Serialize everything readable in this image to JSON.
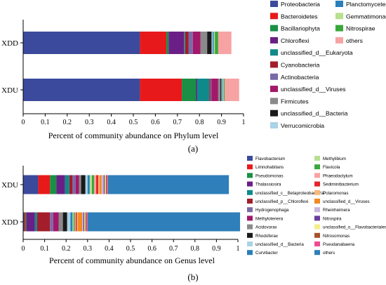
{
  "chart_data": [
    {
      "type": "bar",
      "orientation": "horizontal",
      "stacked": true,
      "panel_label": "(a)",
      "title": "",
      "xlabel": "Percent of community abundance on Phylum level",
      "ylabel": "",
      "xlim": [
        0,
        1
      ],
      "xticks": [
        "0",
        "0.1",
        "0.2",
        "0.3",
        "0.4",
        "0.5",
        "0.6",
        "0.7",
        "0.8",
        "0.9",
        "1"
      ],
      "categories": [
        "XDD",
        "XDU"
      ],
      "legend_columns": [
        [
          "Proteobacteria",
          "Bacteroidetes",
          "Bacillariophyta",
          "Chloroflexi",
          "unclassified_d__Eukaryota",
          "Cyanobacteria",
          "Actinobacteria",
          "unclassified_d__Viruses",
          "Firmicutes",
          "unclassified_d__Bacteria",
          "Verrucomicrobia"
        ],
        [
          "Planctomycetes",
          "Gemmatimonadetes",
          "Nitrospirae",
          "others"
        ]
      ],
      "series": [
        {
          "name": "Proteobacteria",
          "color": "#3b4a9c",
          "values": [
            0.53,
            0.53
          ]
        },
        {
          "name": "Bacteroidetes",
          "color": "#e8191a",
          "values": [
            0.12,
            0.19
          ]
        },
        {
          "name": "Bacillariophyta",
          "color": "#1a8f45",
          "values": [
            0.01,
            0.065
          ]
        },
        {
          "name": "Chloroflexi",
          "color": "#6a1f86",
          "values": [
            0.07,
            0.005
          ]
        },
        {
          "name": "unclassified_d__Eukaryota",
          "color": "#0f8a8a",
          "values": [
            0.005,
            0.055
          ]
        },
        {
          "name": "Cyanobacteria",
          "color": "#a31e2a",
          "values": [
            0.015,
            0.005
          ]
        },
        {
          "name": "Actinobacteria",
          "color": "#7b6aa8",
          "values": [
            0.02,
            0.005
          ]
        },
        {
          "name": "unclassified_d__Viruses",
          "color": "#a3186a",
          "values": [
            0.035,
            0.03
          ]
        },
        {
          "name": "Firmicutes",
          "color": "#8a8a8a",
          "values": [
            0.03,
            0.01
          ]
        },
        {
          "name": "unclassified_d__Bacteria",
          "color": "#1a1a1a",
          "values": [
            0.02,
            0.005
          ]
        },
        {
          "name": "Verrucomicrobia",
          "color": "#a9d3e6",
          "values": [
            0.005,
            0.005
          ]
        },
        {
          "name": "Planctomycetes",
          "color": "#2a7fba",
          "values": [
            0.005,
            0.003
          ]
        },
        {
          "name": "Gemmatimonadetes",
          "color": "#b7e08e",
          "values": [
            0.005,
            0.003
          ]
        },
        {
          "name": "Nitrospirae",
          "color": "#3aa73a",
          "values": [
            0.015,
            0.003
          ]
        },
        {
          "name": "others",
          "color": "#f7a3a3",
          "values": [
            0.06,
            0.066
          ]
        }
      ]
    },
    {
      "type": "bar",
      "orientation": "horizontal",
      "stacked": true,
      "panel_label": "(b)",
      "title": "",
      "xlabel": "Percent of community abundance on Genus level",
      "ylabel": "",
      "xlim": [
        0,
        1
      ],
      "xticks": [
        "0",
        "0.1",
        "0.2",
        "0.3",
        "0.4",
        "0.5",
        "0.6",
        "0.7",
        "0.8",
        "0.9",
        "1"
      ],
      "categories": [
        "XDU",
        "XDD"
      ],
      "legend_columns": [
        [
          "Flavobacterium",
          "Limnohabitans",
          "Pseudomonas",
          "Thalassiosira",
          "unclassified_c__Betaproteobacteria",
          "unclassified_p__Chloroflexi",
          "Hydrogenophaga",
          "Methylotenera",
          "Acidovorax",
          "Rhodoferax",
          "unclassified_d__Bacteria",
          "Curvibacter"
        ],
        [
          "Methylibium",
          "Flavicola",
          "Phaeodactylum",
          "Sediminibacterium",
          "Polaromonas",
          "unclassified_d__Viruses",
          "Rheinheimera",
          "Nitrospira",
          "unclassified_o__Flavobacteriales",
          "Nitrosomonas",
          "Pseudanabaena",
          "others"
        ]
      ],
      "series": [
        {
          "name": "Flavobacterium",
          "color": "#3b4a9c",
          "values": [
            0.07,
            0.005
          ]
        },
        {
          "name": "Limnohabitans",
          "color": "#e8191a",
          "values": [
            0.055,
            0.005
          ]
        },
        {
          "name": "Pseudomonas",
          "color": "#1a8f45",
          "values": [
            0.03,
            0.005
          ]
        },
        {
          "name": "Thalassiosira",
          "color": "#6a1f86",
          "values": [
            0.04,
            0.04
          ]
        },
        {
          "name": "unclassified_c__Betaproteobacteria",
          "color": "#0f8a8a",
          "values": [
            0.02,
            0.01
          ]
        },
        {
          "name": "unclassified_p__Chloroflexi",
          "color": "#a31e2a",
          "values": [
            0.015,
            0.06
          ]
        },
        {
          "name": "Hydrogenophaga",
          "color": "#7b6aa8",
          "values": [
            0.015,
            0.015
          ]
        },
        {
          "name": "Methylotenera",
          "color": "#a3186a",
          "values": [
            0.015,
            0.025
          ]
        },
        {
          "name": "Acidovorax",
          "color": "#8a8a8a",
          "values": [
            0.01,
            0.02
          ]
        },
        {
          "name": "Rhodoferax",
          "color": "#1a1a1a",
          "values": [
            0.02,
            0.02
          ]
        },
        {
          "name": "unclassified_d__Bacteria",
          "color": "#a9d3e6",
          "values": [
            0.01,
            0.015
          ]
        },
        {
          "name": "Curvibacter",
          "color": "#2a7fba",
          "values": [
            0.01,
            0.01
          ]
        },
        {
          "name": "Methylibium",
          "color": "#b7e08e",
          "values": [
            0.01,
            0.005
          ]
        },
        {
          "name": "Flavicola",
          "color": "#3aa73a",
          "values": [
            0.01,
            0.005
          ]
        },
        {
          "name": "Phaeodactylum",
          "color": "#f7a3a3",
          "values": [
            0.01,
            0.005
          ]
        },
        {
          "name": "Sediminibacterium",
          "color": "#e3262c",
          "values": [
            0.01,
            0.005
          ]
        },
        {
          "name": "Polaromonas",
          "color": "#f7b87a",
          "values": [
            0.005,
            0.005
          ]
        },
        {
          "name": "unclassified_d__Viruses",
          "color": "#f28a1e",
          "values": [
            0.01,
            0.02
          ]
        },
        {
          "name": "Rheinheimera",
          "color": "#c9b6dc",
          "values": [
            0.01,
            0.005
          ]
        },
        {
          "name": "Nitrospira",
          "color": "#6a3d9a",
          "values": [
            0.005,
            0.005
          ]
        },
        {
          "name": "unclassified_o__Flavobacteriales",
          "color": "#f4ee8a",
          "values": [
            0.005,
            0.005
          ]
        },
        {
          "name": "Nitrosomonas",
          "color": "#a6522a",
          "values": [
            0.005,
            0.005
          ]
        },
        {
          "name": "Pseudanabaena",
          "color": "#ef4c90",
          "values": [
            0.005,
            0.005
          ]
        },
        {
          "name": "others",
          "color": "#2f7fba",
          "values": [
            0.563,
            0.71
          ]
        }
      ]
    }
  ]
}
